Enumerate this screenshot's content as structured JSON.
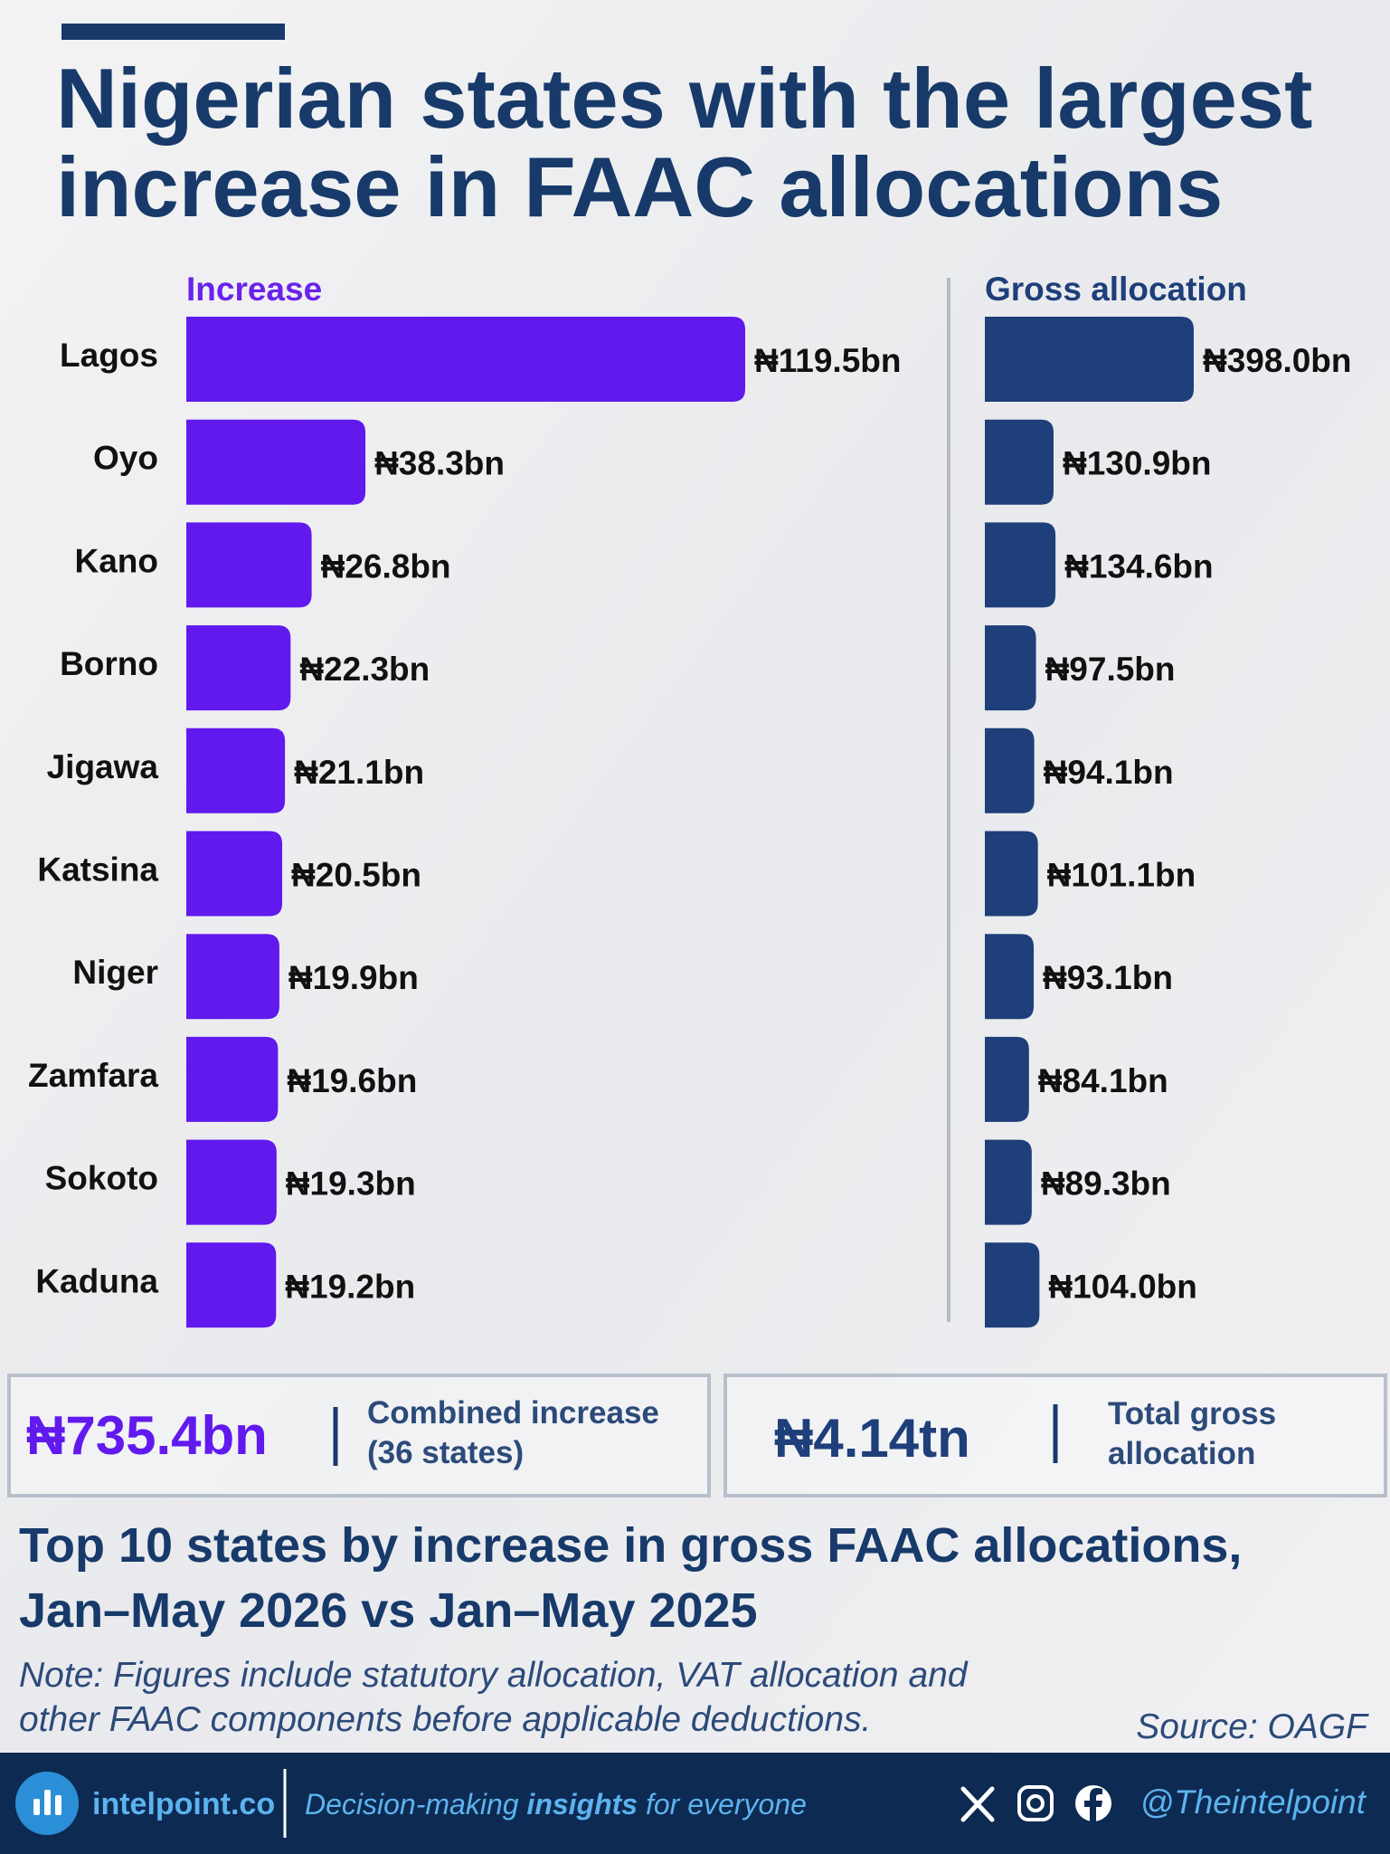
{
  "header": {
    "title": [
      "Nigerian states with the largest",
      "increase in FAAC allocations"
    ]
  },
  "chart_data": [
    {
      "type": "bar",
      "title": "Increase",
      "color": "#6119ee",
      "categories": [
        "Lagos",
        "Oyo",
        "Kano",
        "Borno",
        "Jigawa",
        "Katsina",
        "Niger",
        "Zamfara",
        "Sokoto",
        "Kaduna"
      ],
      "values": [
        119.5,
        38.3,
        26.8,
        22.3,
        21.1,
        20.5,
        19.9,
        19.6,
        19.3,
        19.2
      ],
      "value_labels": [
        "₦119.5bn",
        "₦38.3bn",
        "₦26.8bn",
        "₦22.3bn",
        "₦21.1bn",
        "₦20.5bn",
        "₦19.9bn",
        "₦19.6bn",
        "₦19.3bn",
        "₦19.2bn"
      ]
    },
    {
      "type": "bar",
      "title": "Gross allocation",
      "color": "#1e3f7a",
      "values": [
        398.0,
        130.9,
        134.6,
        97.5,
        94.1,
        101.1,
        93.1,
        84.1,
        89.3,
        104.0
      ],
      "value_labels": [
        "₦398.0bn",
        "₦130.9bn",
        "₦134.6bn",
        "₦97.5bn",
        "₦94.1bn",
        "₦101.1bn",
        "₦93.1bn",
        "₦84.1bn",
        "₦89.3bn",
        "₦104.0bn"
      ]
    }
  ],
  "summary": [
    {
      "value": "₦735.4bn",
      "text": [
        "Combined increase",
        "(36 states)"
      ]
    },
    {
      "value": "₦4.14tn",
      "text": [
        "Total gross",
        "allocation"
      ]
    }
  ],
  "subtitle": [
    "Top 10 states by increase in gross FAAC allocations,",
    "Jan–May 2026 vs Jan–May 2025"
  ],
  "note": [
    "Note: Figures include statutory allocation, VAT allocation and",
    "other FAAC components before applicable deductions."
  ],
  "source": "Source: OAGF",
  "footer": {
    "brand": "intelpoint.co",
    "tagline": [
      "Decision-making ",
      "insights",
      " for everyone"
    ],
    "handle": "@Theintelpoint"
  }
}
